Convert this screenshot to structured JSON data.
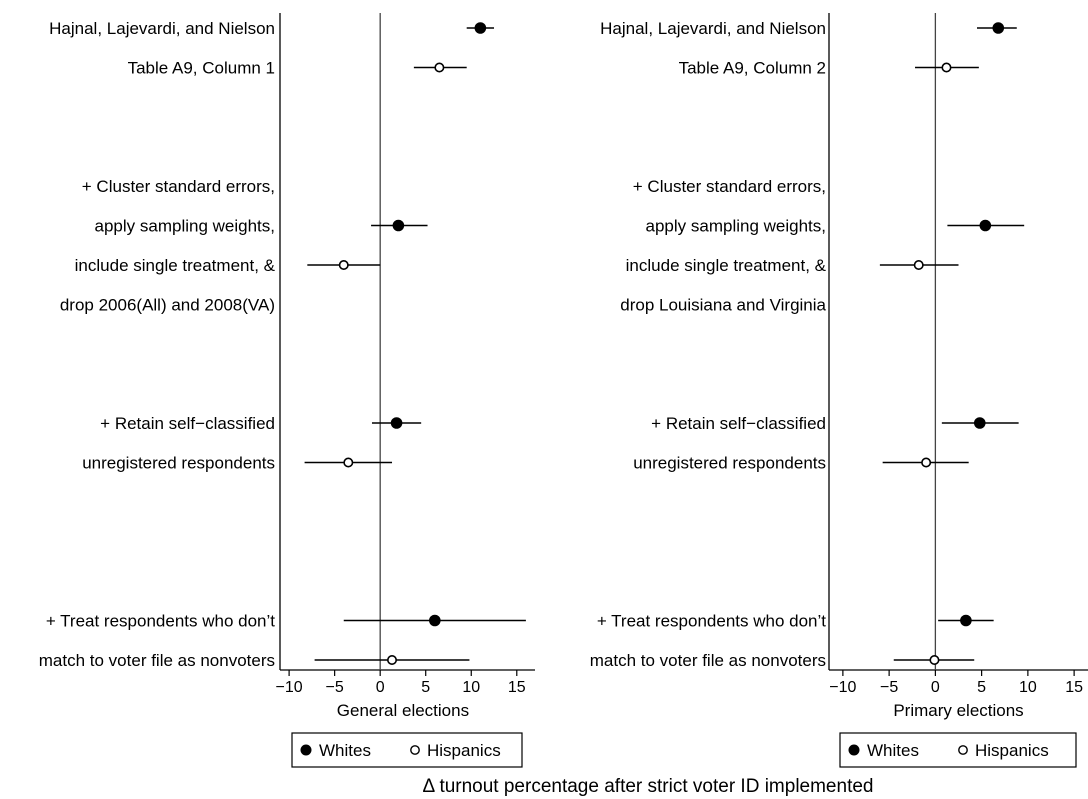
{
  "figure_label": "Δ turnout percentage after strict voter ID implemented",
  "legend": {
    "whites": "Whites",
    "hispanics": "Hispanics"
  },
  "colors": {
    "whites_marker": "#000000",
    "hispanics_marker": "#ffffff",
    "lines": "#000000"
  },
  "chart_data": [
    {
      "type": "scatter",
      "subtype": "coefficient-plot",
      "xlabel": "General elections",
      "xlim": [
        -11,
        17
      ],
      "xticks": [
        -10,
        -5,
        0,
        5,
        10,
        15
      ],
      "reference_line": 0,
      "labels": [
        "Hajnal, Lajevardi, and Nielson",
        "Table A9, Column 1",
        "+ Cluster standard errors,",
        "apply sampling weights,",
        "include single treatment, &",
        "drop 2006(All) and 2008(VA)",
        "+ Retain self−classified",
        "unregistered respondents",
        "+ Treat respondents who don’t",
        "match to voter file as nonvoters"
      ],
      "series": [
        {
          "name": "Whites",
          "filled": true,
          "points": [
            {
              "row": 0,
              "estimate": 11,
              "ci": [
                9.5,
                12.5
              ]
            },
            {
              "row": 5,
              "estimate": 2,
              "ci": [
                -1,
                5.2
              ]
            },
            {
              "row": 10,
              "estimate": 1.8,
              "ci": [
                -0.9,
                4.5
              ]
            },
            {
              "row": 15,
              "estimate": 6,
              "ci": [
                -4,
                16
              ]
            }
          ]
        },
        {
          "name": "Hispanics",
          "filled": false,
          "points": [
            {
              "row": 1,
              "estimate": 6.5,
              "ci": [
                3.7,
                9.5
              ]
            },
            {
              "row": 6,
              "estimate": -4,
              "ci": [
                -8,
                0
              ]
            },
            {
              "row": 11,
              "estimate": -3.5,
              "ci": [
                -8.3,
                1.3
              ]
            },
            {
              "row": 16,
              "estimate": 1.3,
              "ci": [
                -7.2,
                9.8
              ]
            }
          ]
        }
      ]
    },
    {
      "type": "scatter",
      "subtype": "coefficient-plot",
      "xlabel": "Primary elections",
      "xlim": [
        -11.5,
        16.5
      ],
      "xticks": [
        -10,
        -5,
        0,
        5,
        10,
        15
      ],
      "reference_line": 0,
      "labels": [
        "Hajnal, Lajevardi, and Nielson",
        "Table A9, Column 2",
        "+ Cluster standard errors,",
        "apply sampling weights,",
        "include single treatment, &",
        "drop Louisiana and Virginia",
        "+ Retain self−classified",
        "unregistered respondents",
        "+ Treat respondents who don’t",
        "match to voter file as nonvoters"
      ],
      "series": [
        {
          "name": "Whites",
          "filled": true,
          "points": [
            {
              "row": 0,
              "estimate": 6.8,
              "ci": [
                4.5,
                8.8
              ]
            },
            {
              "row": 5,
              "estimate": 5.4,
              "ci": [
                1.3,
                9.6
              ]
            },
            {
              "row": 10,
              "estimate": 4.8,
              "ci": [
                0.7,
                9.0
              ]
            },
            {
              "row": 15,
              "estimate": 3.3,
              "ci": [
                0.3,
                6.3
              ]
            }
          ]
        },
        {
          "name": "Hispanics",
          "filled": false,
          "points": [
            {
              "row": 1,
              "estimate": 1.2,
              "ci": [
                -2.2,
                4.7
              ]
            },
            {
              "row": 6,
              "estimate": -1.8,
              "ci": [
                -6.0,
                2.5
              ]
            },
            {
              "row": 11,
              "estimate": -1.0,
              "ci": [
                -5.7,
                3.6
              ]
            },
            {
              "row": 16,
              "estimate": -0.1,
              "ci": [
                -4.5,
                4.2
              ]
            }
          ]
        }
      ]
    }
  ]
}
